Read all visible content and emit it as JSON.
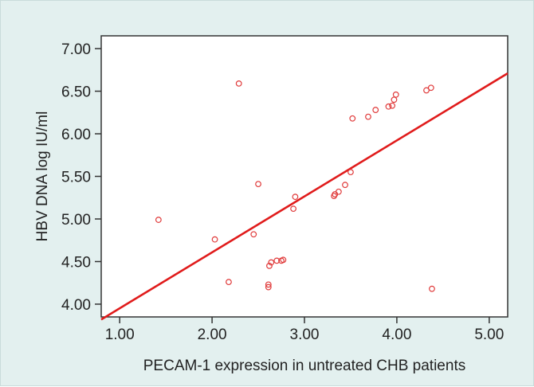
{
  "chart_data": {
    "type": "scatter",
    "title": "",
    "xlabel": "PECAM-1 expression in untreated CHB patients",
    "ylabel": "HBV DNA log IU/ml",
    "xlim": [
      0.8,
      5.2
    ],
    "ylim": [
      3.85,
      7.15
    ],
    "x_ticks": [
      "1.00",
      "2.00",
      "3.00",
      "4.00",
      "5.00"
    ],
    "y_ticks": [
      "4.00",
      "4.50",
      "5.00",
      "5.50",
      "6.00",
      "6.50",
      "7.00"
    ],
    "grid": false,
    "legend": "none",
    "colors": {
      "points": "#e03a3a",
      "fit_line": "#e01b1b",
      "plot_bg": "#ffffff",
      "panel_bg": "#e3f0ef"
    },
    "points": [
      {
        "x": 1.42,
        "y": 4.99
      },
      {
        "x": 2.03,
        "y": 4.76
      },
      {
        "x": 2.18,
        "y": 4.26
      },
      {
        "x": 2.29,
        "y": 6.59
      },
      {
        "x": 2.45,
        "y": 4.82
      },
      {
        "x": 2.5,
        "y": 5.41
      },
      {
        "x": 2.61,
        "y": 4.23
      },
      {
        "x": 2.61,
        "y": 4.2
      },
      {
        "x": 2.62,
        "y": 4.45
      },
      {
        "x": 2.64,
        "y": 4.49
      },
      {
        "x": 2.7,
        "y": 4.51
      },
      {
        "x": 2.75,
        "y": 4.51
      },
      {
        "x": 2.77,
        "y": 4.52
      },
      {
        "x": 2.88,
        "y": 5.12
      },
      {
        "x": 2.9,
        "y": 5.26
      },
      {
        "x": 3.32,
        "y": 5.27
      },
      {
        "x": 3.33,
        "y": 5.29
      },
      {
        "x": 3.37,
        "y": 5.32
      },
      {
        "x": 3.44,
        "y": 5.4
      },
      {
        "x": 3.5,
        "y": 5.55
      },
      {
        "x": 3.52,
        "y": 6.18
      },
      {
        "x": 3.69,
        "y": 6.2
      },
      {
        "x": 3.77,
        "y": 6.28
      },
      {
        "x": 3.91,
        "y": 6.32
      },
      {
        "x": 3.95,
        "y": 6.33
      },
      {
        "x": 3.97,
        "y": 6.4
      },
      {
        "x": 3.99,
        "y": 6.46
      },
      {
        "x": 4.32,
        "y": 6.51
      },
      {
        "x": 4.37,
        "y": 6.54
      },
      {
        "x": 4.38,
        "y": 4.18
      }
    ],
    "fit_line": {
      "x": [
        0.8,
        5.2
      ],
      "y": [
        3.82,
        6.71
      ]
    }
  }
}
